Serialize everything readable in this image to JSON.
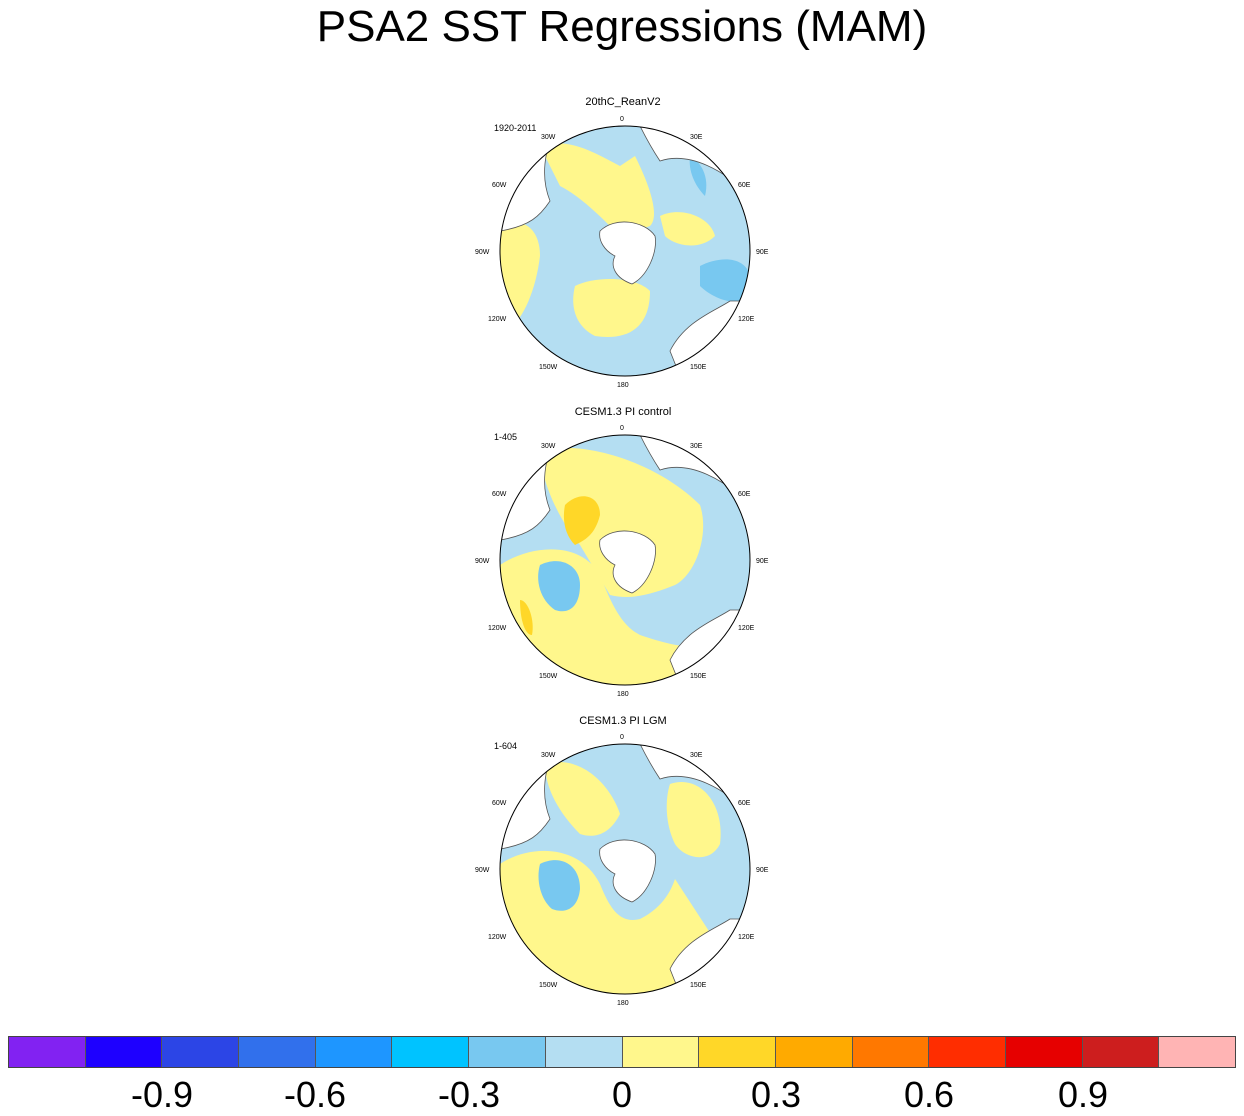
{
  "title": "PSA2 SST Regressions (MAM)",
  "panels": [
    {
      "name": "20thC_ReanV2",
      "period": "1920-2011"
    },
    {
      "name": "CESM1.3 PI control",
      "period": "1-405"
    },
    {
      "name": "CESM1.3 PI LGM",
      "period": "1-604"
    }
  ],
  "longitude_labels": [
    "0",
    "30E",
    "60E",
    "90E",
    "120E",
    "150E",
    "180",
    "150W",
    "120W",
    "90W",
    "60W",
    "30W"
  ],
  "colorbar": {
    "colors": [
      "#8222F2",
      "#1E00FF",
      "#2C45E6",
      "#3170EC",
      "#1E96FF",
      "#00C3FF",
      "#78C8F0",
      "#B4DEF2",
      "#FFF78C",
      "#FFD728",
      "#FFAA00",
      "#FF7800",
      "#FF2D00",
      "#E60000",
      "#CD1E1E",
      "#FFB4B4"
    ],
    "tick_labels": [
      "-0.9",
      "-0.6",
      "-0.3",
      "0",
      "0.3",
      "0.6",
      "0.9"
    ]
  }
}
